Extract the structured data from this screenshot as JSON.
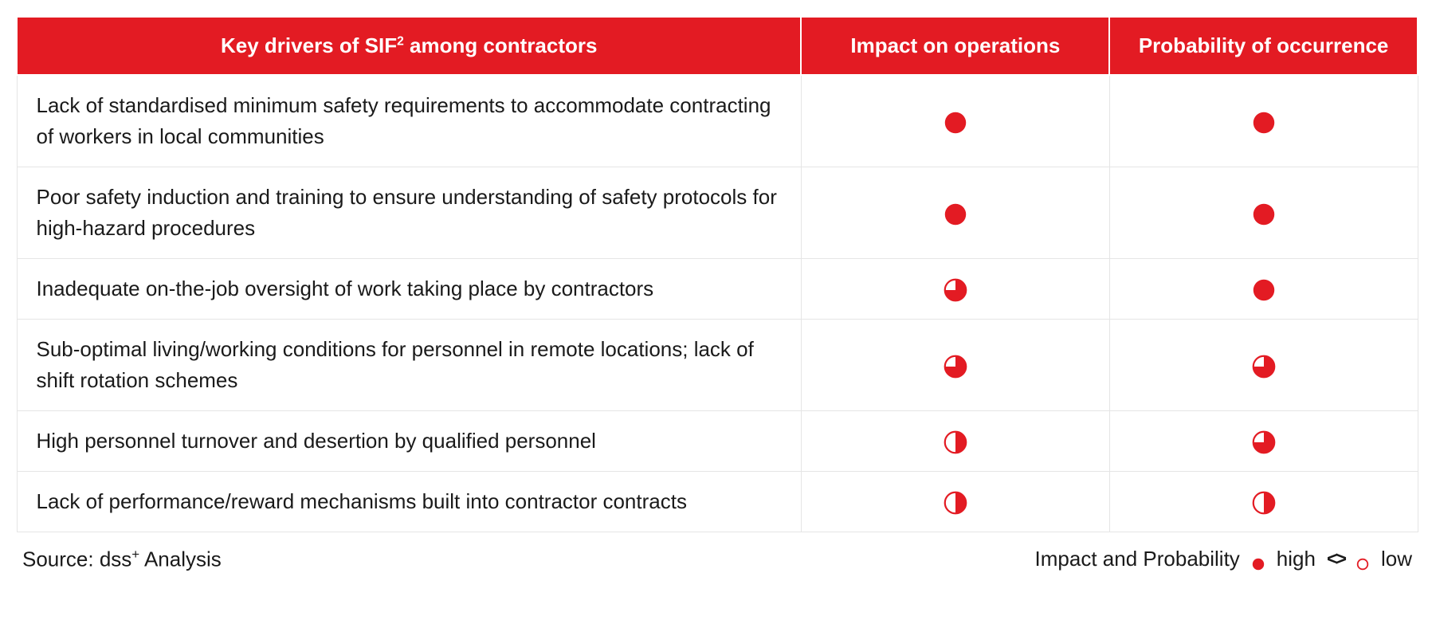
{
  "colors": {
    "brand_red": "#e31b23",
    "white": "#ffffff",
    "border_gray": "#e5e5e5",
    "text": "#1a1a1a"
  },
  "table": {
    "type": "table",
    "headers": {
      "driver": "Key drivers of SIF² among contractors",
      "impact": "Impact on operations",
      "probability": "Probability of occurrence"
    },
    "rows": [
      {
        "driver": "Lack of standardised minimum safety requirements to accommodate contracting of workers in local communities",
        "impact": 1.0,
        "probability": 1.0
      },
      {
        "driver": "Poor safety induction and training to ensure understanding of safety protocols for high-hazard procedures",
        "impact": 1.0,
        "probability": 1.0
      },
      {
        "driver": "Inadequate on-the-job oversight of work taking place by contractors",
        "impact": 0.75,
        "probability": 1.0
      },
      {
        "driver": "Sub-optimal living/working conditions for personnel in remote locations; lack of shift rotation schemes",
        "impact": 0.75,
        "probability": 0.75
      },
      {
        "driver": "High personnel turnover and desertion by qualified personnel",
        "impact": 0.5,
        "probability": 0.75
      },
      {
        "driver": "Lack of performance/reward mechanisms built into contractor contracts",
        "impact": 0.5,
        "probability": 0.5
      }
    ],
    "harvey_style": {
      "radius": 15,
      "fill": "#e31b23",
      "stroke": "#e31b23",
      "stroke_width": 2.5
    }
  },
  "footer": {
    "source_prefix": "Source: dss",
    "source_sup": "+",
    "source_suffix": " Analysis",
    "legend_label": "Impact and Probability",
    "legend_high": "high",
    "legend_low": "low"
  }
}
